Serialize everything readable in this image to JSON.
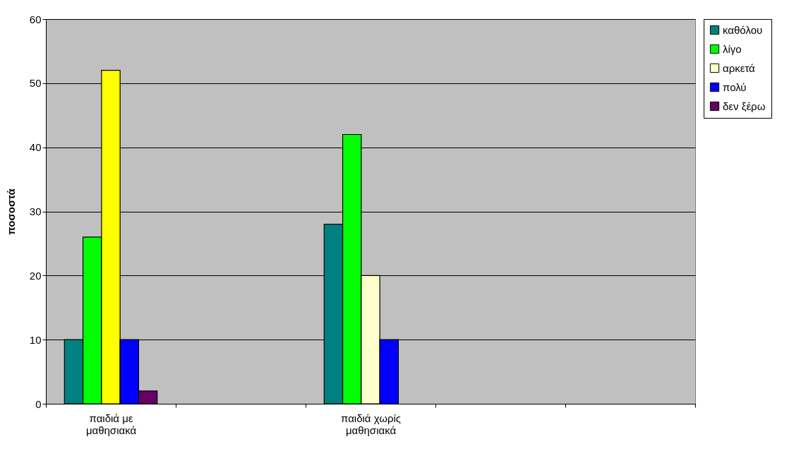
{
  "chart_data": {
    "type": "bar",
    "ylabel": "ποσοστά",
    "categories": [
      "παιδιά με\nμαθησιακά",
      null,
      "παιδιά χωρίς\nμαθησιακά",
      null,
      null
    ],
    "series": [
      {
        "name": "καθόλου",
        "color": "#008080",
        "values": [
          10,
          null,
          28,
          null,
          null
        ]
      },
      {
        "name": "λίγο",
        "color": "#00ff00",
        "values": [
          26,
          null,
          42,
          null,
          null
        ]
      },
      {
        "name": "αρκετά",
        "color": "#ffffcc",
        "colors": [
          "#ffff00",
          null,
          "#ffffcc",
          null,
          null
        ],
        "values": [
          52,
          null,
          20,
          null,
          null
        ]
      },
      {
        "name": "πολύ",
        "color": "#0000ff",
        "values": [
          10,
          null,
          10,
          null,
          null
        ]
      },
      {
        "name": "δεν ξέρω",
        "color": "#660066",
        "values": [
          2,
          null,
          null,
          null,
          null
        ]
      }
    ],
    "ylim": [
      0,
      60
    ],
    "yticks": [
      0,
      10,
      20,
      30,
      40,
      50,
      60
    ],
    "grid": "y",
    "legend": "right"
  }
}
